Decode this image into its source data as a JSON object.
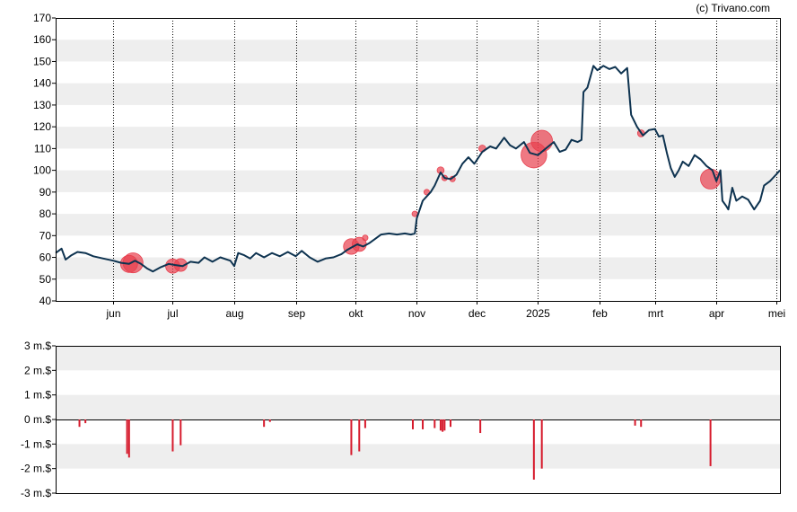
{
  "copyright": "(c) Trivano.com",
  "colors": {
    "price_line": "#0e3350",
    "marker": "#e8404f",
    "volume_bar": "#d61a2c",
    "band": "#eeeeee",
    "frame": "#000000"
  },
  "chart_data": [
    {
      "type": "line",
      "title": "",
      "xlabel": "",
      "ylabel": "",
      "ylim": [
        40,
        170
      ],
      "grid": "horizontal alternating bands, vertical dotted lines at month starts",
      "y_ticks": [
        "40",
        "50",
        "60",
        "70",
        "80",
        "90",
        "100",
        "110",
        "120",
        "130",
        "140",
        "150",
        "160",
        "170"
      ],
      "x_tick_labels": [
        "jun",
        "jul",
        "aug",
        "sep",
        "okt",
        "nov",
        "dec",
        "2025",
        "feb",
        "mrt",
        "apr",
        "mei"
      ],
      "x_tick_dates": [
        "2024-06-01",
        "2024-07-01",
        "2024-08-01",
        "2024-09-01",
        "2024-10-01",
        "2024-11-01",
        "2024-12-01",
        "2025-01-01",
        "2025-02-01",
        "2025-03-01",
        "2025-04-01",
        "2025-05-01"
      ],
      "x_range": [
        "2024-05-03",
        "2025-05-03"
      ],
      "series": [
        {
          "name": "",
          "points": [
            [
              "2024-05-03",
              62
            ],
            [
              "2024-05-06",
              64
            ],
            [
              "2024-05-08",
              59
            ],
            [
              "2024-05-11",
              61
            ],
            [
              "2024-05-14",
              62.5
            ],
            [
              "2024-05-18",
              62
            ],
            [
              "2024-05-22",
              60.5
            ],
            [
              "2024-05-27",
              59.5
            ],
            [
              "2024-06-01",
              58.5
            ],
            [
              "2024-06-05",
              57.5
            ],
            [
              "2024-06-09",
              57
            ],
            [
              "2024-06-12",
              58.5
            ],
            [
              "2024-06-15",
              57
            ],
            [
              "2024-06-18",
              55
            ],
            [
              "2024-06-21",
              53.5
            ],
            [
              "2024-06-25",
              55.5
            ],
            [
              "2024-06-29",
              57
            ],
            [
              "2024-07-02",
              56.5
            ],
            [
              "2024-07-06",
              56
            ],
            [
              "2024-07-10",
              58
            ],
            [
              "2024-07-14",
              57.5
            ],
            [
              "2024-07-17",
              60
            ],
            [
              "2024-07-21",
              58
            ],
            [
              "2024-07-25",
              60
            ],
            [
              "2024-07-30",
              58.5
            ],
            [
              "2024-08-01",
              56
            ],
            [
              "2024-08-03",
              62
            ],
            [
              "2024-08-06",
              61
            ],
            [
              "2024-08-09",
              59.5
            ],
            [
              "2024-08-12",
              62
            ],
            [
              "2024-08-16",
              60
            ],
            [
              "2024-08-20",
              62
            ],
            [
              "2024-08-24",
              60.5
            ],
            [
              "2024-08-28",
              62.5
            ],
            [
              "2024-09-01",
              60.5
            ],
            [
              "2024-09-04",
              63
            ],
            [
              "2024-09-08",
              60
            ],
            [
              "2024-09-12",
              58
            ],
            [
              "2024-09-16",
              59.5
            ],
            [
              "2024-09-20",
              60
            ],
            [
              "2024-09-24",
              61.5
            ],
            [
              "2024-09-27",
              63.5
            ],
            [
              "2024-09-29",
              64.5
            ],
            [
              "2024-10-02",
              66
            ],
            [
              "2024-10-05",
              65
            ],
            [
              "2024-10-08",
              66.5
            ],
            [
              "2024-10-11",
              68.5
            ],
            [
              "2024-10-14",
              70.5
            ],
            [
              "2024-10-18",
              71
            ],
            [
              "2024-10-22",
              70.5
            ],
            [
              "2024-10-26",
              71
            ],
            [
              "2024-10-29",
              70.5
            ],
            [
              "2024-10-31",
              71
            ],
            [
              "2024-11-01",
              78
            ],
            [
              "2024-11-04",
              86
            ],
            [
              "2024-11-08",
              90
            ],
            [
              "2024-11-10",
              93
            ],
            [
              "2024-11-13",
              99
            ],
            [
              "2024-11-15",
              96.5
            ],
            [
              "2024-11-18",
              96
            ],
            [
              "2024-11-21",
              98
            ],
            [
              "2024-11-24",
              103
            ],
            [
              "2024-11-27",
              106
            ],
            [
              "2024-11-30",
              103
            ],
            [
              "2024-12-04",
              108.5
            ],
            [
              "2024-12-08",
              111
            ],
            [
              "2024-12-11",
              110
            ],
            [
              "2024-12-15",
              115
            ],
            [
              "2024-12-18",
              111.5
            ],
            [
              "2024-12-21",
              110
            ],
            [
              "2024-12-25",
              113
            ],
            [
              "2024-12-28",
              108
            ],
            [
              "2025-01-01",
              107
            ],
            [
              "2025-01-05",
              110
            ],
            [
              "2025-01-09",
              113
            ],
            [
              "2025-01-12",
              108.5
            ],
            [
              "2025-01-15",
              109.5
            ],
            [
              "2025-01-18",
              114
            ],
            [
              "2025-01-21",
              113
            ],
            [
              "2025-01-23",
              114
            ],
            [
              "2025-01-24",
              136
            ],
            [
              "2025-01-26",
              138
            ],
            [
              "2025-01-29",
              148
            ],
            [
              "2025-01-31",
              146
            ],
            [
              "2025-02-03",
              148
            ],
            [
              "2025-02-06",
              146.5
            ],
            [
              "2025-02-09",
              147.5
            ],
            [
              "2025-02-12",
              144.5
            ],
            [
              "2025-02-15",
              147
            ],
            [
              "2025-02-17",
              125.5
            ],
            [
              "2025-02-20",
              120
            ],
            [
              "2025-02-23",
              116
            ],
            [
              "2025-02-26",
              118.5
            ],
            [
              "2025-03-01",
              119
            ],
            [
              "2025-03-03",
              115.5
            ],
            [
              "2025-03-05",
              116
            ],
            [
              "2025-03-07",
              108
            ],
            [
              "2025-03-09",
              101
            ],
            [
              "2025-03-11",
              97
            ],
            [
              "2025-03-13",
              100
            ],
            [
              "2025-03-15",
              104
            ],
            [
              "2025-03-18",
              102
            ],
            [
              "2025-03-21",
              107
            ],
            [
              "2025-03-24",
              105
            ],
            [
              "2025-03-27",
              102
            ],
            [
              "2025-03-30",
              100
            ],
            [
              "2025-04-01",
              95
            ],
            [
              "2025-04-03",
              100
            ],
            [
              "2025-04-04",
              86
            ],
            [
              "2025-04-06",
              83.5
            ],
            [
              "2025-04-07",
              82
            ],
            [
              "2025-04-09",
              92
            ],
            [
              "2025-04-11",
              86
            ],
            [
              "2025-04-14",
              88
            ],
            [
              "2025-04-17",
              86.5
            ],
            [
              "2025-04-20",
              82
            ],
            [
              "2025-04-23",
              86
            ],
            [
              "2025-04-25",
              93
            ],
            [
              "2025-04-28",
              95
            ],
            [
              "2025-05-01",
              98
            ],
            [
              "2025-05-03",
              100
            ]
          ]
        }
      ],
      "markers": [
        {
          "date": "2024-06-09",
          "y": 57,
          "size": 1.0
        },
        {
          "date": "2024-06-11",
          "y": 57.5,
          "size": 1.2
        },
        {
          "date": "2024-07-01",
          "y": 56,
          "size": 0.8
        },
        {
          "date": "2024-07-05",
          "y": 56.5,
          "size": 0.7
        },
        {
          "date": "2024-09-29",
          "y": 65,
          "size": 0.9
        },
        {
          "date": "2024-10-03",
          "y": 66,
          "size": 0.8
        },
        {
          "date": "2024-10-06",
          "y": 69,
          "size": 0.2
        },
        {
          "date": "2024-10-31",
          "y": 80,
          "size": 0.2
        },
        {
          "date": "2024-11-06",
          "y": 90,
          "size": 0.2
        },
        {
          "date": "2024-11-13",
          "y": 100,
          "size": 0.3
        },
        {
          "date": "2024-11-15",
          "y": 96.5,
          "size": 0.2
        },
        {
          "date": "2024-11-19",
          "y": 96,
          "size": 0.2
        },
        {
          "date": "2024-12-04",
          "y": 110,
          "size": 0.3
        },
        {
          "date": "2024-12-30",
          "y": 107,
          "size": 1.6
        },
        {
          "date": "2025-01-03",
          "y": 113.5,
          "size": 1.3
        },
        {
          "date": "2025-02-22",
          "y": 117,
          "size": 0.3
        },
        {
          "date": "2025-03-29",
          "y": 96,
          "size": 1.2
        }
      ]
    },
    {
      "type": "bar",
      "title": "",
      "xlabel": "",
      "ylabel": "",
      "ylim": [
        -3,
        3
      ],
      "y_ticks": [
        "3 m.$",
        "2 m.$",
        "1 m.$",
        "0 m.$",
        "-1 m.$",
        "-2 m.$",
        "-3 m.$"
      ],
      "bars": [
        {
          "date": "2024-05-15",
          "value": -0.3
        },
        {
          "date": "2024-05-18",
          "value": -0.15
        },
        {
          "date": "2024-06-08",
          "value": -1.4
        },
        {
          "date": "2024-06-09",
          "value": -1.55
        },
        {
          "date": "2024-07-01",
          "value": -1.3
        },
        {
          "date": "2024-07-05",
          "value": -1.05
        },
        {
          "date": "2024-08-16",
          "value": -0.3
        },
        {
          "date": "2024-08-19",
          "value": -0.1
        },
        {
          "date": "2024-09-29",
          "value": -1.45
        },
        {
          "date": "2024-10-03",
          "value": -1.3
        },
        {
          "date": "2024-10-06",
          "value": -0.35
        },
        {
          "date": "2024-10-30",
          "value": -0.4
        },
        {
          "date": "2024-11-04",
          "value": -0.4
        },
        {
          "date": "2024-11-10",
          "value": -0.35
        },
        {
          "date": "2024-11-13",
          "value": -0.45
        },
        {
          "date": "2024-11-14",
          "value": -0.5
        },
        {
          "date": "2024-11-15",
          "value": -0.45
        },
        {
          "date": "2024-11-18",
          "value": -0.3
        },
        {
          "date": "2024-12-03",
          "value": -0.55
        },
        {
          "date": "2024-12-30",
          "value": -2.45
        },
        {
          "date": "2025-01-03",
          "value": -2.0
        },
        {
          "date": "2025-02-19",
          "value": -0.25
        },
        {
          "date": "2025-02-22",
          "value": -0.3
        },
        {
          "date": "2025-03-29",
          "value": -1.9
        }
      ]
    }
  ]
}
